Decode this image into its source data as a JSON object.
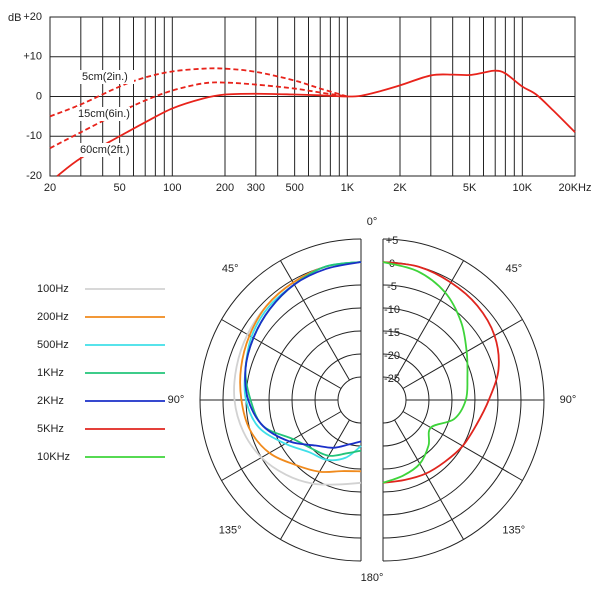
{
  "chart_data": [
    {
      "type": "line",
      "y_label": "dB",
      "xscale": "log",
      "xlim": [
        20,
        20000
      ],
      "ylim": [
        -20,
        20
      ],
      "xticks": [
        20,
        50,
        100,
        200,
        300,
        500,
        {
          "value": 1000,
          "label": "1K"
        },
        {
          "value": 2000,
          "label": "2K"
        },
        {
          "value": 5000,
          "label": "5K"
        },
        {
          "value": 10000,
          "label": "10K"
        },
        {
          "value": 20000,
          "label": "20KHz"
        }
      ],
      "xgrid": [
        30,
        40,
        60,
        70,
        80,
        90,
        400,
        600,
        700,
        800,
        900,
        3000,
        4000,
        6000,
        7000,
        8000,
        9000
      ],
      "yticks": [
        -20,
        -10,
        0,
        {
          "value": 10,
          "label": "+10"
        },
        {
          "value": 20,
          "label": "+20"
        }
      ],
      "grid": true,
      "series": [
        {
          "name": "5cm(2in.)",
          "color": "#e8231b",
          "dashed": true,
          "x": [
            20,
            30,
            50,
            70,
            100,
            150,
            200,
            300,
            500,
            700,
            1000
          ],
          "values": [
            -5,
            -2,
            2.5,
            4.8,
            6.3,
            7,
            7,
            6.2,
            4,
            2,
            0
          ]
        },
        {
          "name": "15cm(6in.)",
          "color": "#e8231b",
          "dashed": true,
          "x": [
            20,
            30,
            50,
            70,
            100,
            150,
            200,
            300,
            500,
            700,
            1000
          ],
          "values": [
            -13,
            -9,
            -4,
            -1,
            1.5,
            3.3,
            3.5,
            3,
            2,
            1,
            0
          ]
        },
        {
          "name": "60cm(2ft.)",
          "color": "#e8231b",
          "dashed": false,
          "x": [
            22,
            30,
            50,
            70,
            100,
            150,
            200,
            300,
            500,
            700,
            1000,
            1200,
            1500,
            2000,
            3000,
            4000,
            5000,
            6000,
            7000,
            8000,
            10000,
            12000,
            15000,
            20000
          ],
          "values": [
            -20,
            -15.5,
            -10,
            -6.5,
            -3,
            -0.5,
            0.5,
            0.7,
            0.5,
            0.3,
            0,
            0.2,
            1.2,
            2.8,
            5.3,
            5.5,
            5.4,
            6,
            6.5,
            5.8,
            2.5,
            0.5,
            -3.5,
            -9
          ]
        }
      ]
    },
    {
      "type": "polar",
      "rlim": [
        -30,
        5
      ],
      "rticks": [
        {
          "value": 5,
          "label": "+5"
        },
        0,
        -5,
        -10,
        -15,
        -20,
        -25
      ],
      "angle_ticks": [
        {
          "value": 0,
          "label": "0°"
        },
        {
          "value": 45,
          "label": "45°"
        },
        {
          "value": 90,
          "label": "90°"
        },
        {
          "value": 135,
          "label": "135°"
        },
        {
          "value": 180,
          "label": "180°"
        }
      ],
      "angles": [
        0,
        15,
        30,
        45,
        60,
        75,
        90,
        105,
        120,
        135,
        150,
        165,
        180
      ],
      "legend": "left",
      "series": [
        {
          "name": "100Hz",
          "color": "#d2d2d2",
          "side": "left",
          "values": [
            0,
            0,
            -0.5,
            -1,
            -1.5,
            -2,
            -2.5,
            -3.5,
            -5,
            -7,
            -9,
            -11,
            -12
          ]
        },
        {
          "name": "200Hz",
          "color": "#f08a1c",
          "side": "left",
          "values": [
            0,
            0,
            -0.5,
            -1,
            -2,
            -3,
            -4,
            -5,
            -7,
            -10,
            -12,
            -14,
            -14.5
          ]
        },
        {
          "name": "500Hz",
          "color": "#3fdfe8",
          "side": "left",
          "values": [
            0,
            0,
            -1,
            -1.5,
            -2.5,
            -4,
            -5,
            -7,
            -11,
            -14,
            -15,
            -17,
            -20
          ]
        },
        {
          "name": "1KHz",
          "color": "#22c47a",
          "side": "left",
          "values": [
            0,
            0,
            -1,
            -2,
            -3,
            -4,
            -6,
            -8,
            -13,
            -15,
            -16,
            -18,
            -19
          ]
        },
        {
          "name": "2KHz",
          "color": "#1a2fc8",
          "side": "left",
          "values": [
            0,
            -0.5,
            -1,
            -2,
            -3,
            -4,
            -5.5,
            -8,
            -12,
            -16,
            -18,
            -20,
            -21
          ]
        },
        {
          "name": "5KHz",
          "color": "#e0251e",
          "side": "right",
          "values": [
            0,
            0,
            -0.5,
            -1,
            -2,
            -4,
            -7,
            -9,
            -10,
            -11,
            -11.5,
            -12,
            -12
          ]
        },
        {
          "name": "10KHz",
          "color": "#3ed43a",
          "side": "right",
          "values": [
            0,
            -1,
            -3,
            -6,
            -9,
            -11,
            -12,
            -14,
            -18,
            -16,
            -14,
            -13,
            -12
          ]
        }
      ]
    }
  ]
}
